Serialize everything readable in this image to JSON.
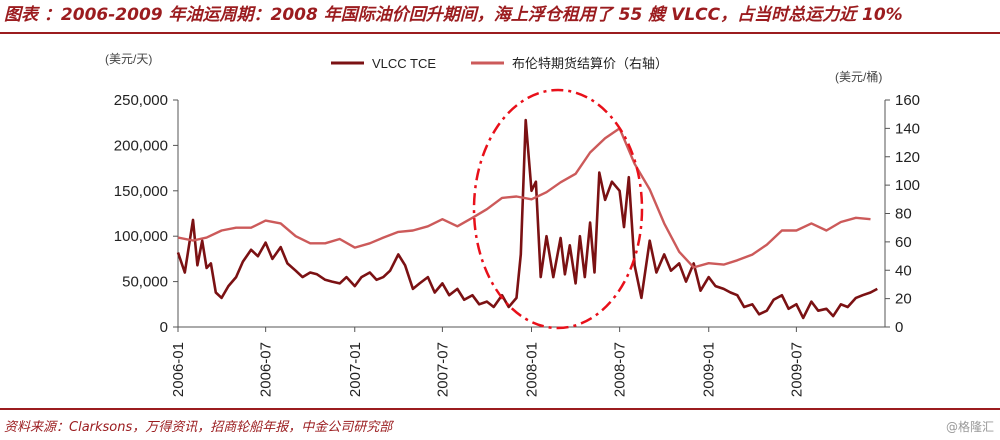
{
  "header": {
    "title": "图表 ：2006-2009 年油运周期：2008 年国际油价回升期间，海上浮仓租用了 55 艘 VLCC，占当时总运力近 10%"
  },
  "footer": {
    "source": "资料来源：Clarksons，万得资讯，招商轮船年报，中金公司研究部",
    "watermark": "@格隆汇"
  },
  "colors": {
    "accent": "#9b1c1f",
    "vlcc": "#7b1113",
    "brent": "#cc5a5a",
    "highlight": "#e8101a"
  },
  "chart_data": {
    "type": "line",
    "left_unit": "(美元/天)",
    "right_unit": "(美元/桶)",
    "ylim_left": [
      0,
      250000
    ],
    "ylim_right": [
      0,
      160
    ],
    "left_ticks": [
      "250,000",
      "200,000",
      "150,000",
      "100,000",
      "50,000",
      "0"
    ],
    "right_ticks": [
      "160",
      "140",
      "120",
      "100",
      "80",
      "60",
      "40",
      "20",
      "0"
    ],
    "x_ticks": [
      "2006-01",
      "2006-07",
      "2007-01",
      "2007-07",
      "2008-01",
      "2008-07",
      "2009-01",
      "2009-07"
    ],
    "legend": [
      {
        "name": "VLCC TCE",
        "axis": "left"
      },
      {
        "name": "布伦特期货结算价（右轴）",
        "axis": "right"
      }
    ],
    "annotation": "dash-dot ellipse highlighting 2007-10 to 2008-08",
    "series": [
      {
        "name": "VLCC TCE",
        "axis": "left",
        "x": [
          "2006-01",
          "2006-01-15",
          "2006-02",
          "2006-02-10",
          "2006-02-20",
          "2006-03",
          "2006-03-10",
          "2006-03-20",
          "2006-04",
          "2006-04-15",
          "2006-05",
          "2006-05-15",
          "2006-06",
          "2006-06-15",
          "2006-07",
          "2006-07-15",
          "2006-08",
          "2006-08-15",
          "2006-09",
          "2006-09-15",
          "2006-10",
          "2006-10-15",
          "2006-11",
          "2006-11-15",
          "2006-12",
          "2006-12-15",
          "2007-01",
          "2007-01-15",
          "2007-02",
          "2007-02-15",
          "2007-03",
          "2007-03-15",
          "2007-04",
          "2007-04-15",
          "2007-05",
          "2007-05-15",
          "2007-06",
          "2007-06-15",
          "2007-07",
          "2007-07-15",
          "2007-08",
          "2007-08-15",
          "2007-09",
          "2007-09-15",
          "2007-10",
          "2007-10-15",
          "2007-11",
          "2007-11-15",
          "2007-12",
          "2007-12-10",
          "2007-12-20",
          "2008-01",
          "2008-01-10",
          "2008-01-20",
          "2008-02",
          "2008-02-15",
          "2008-03",
          "2008-03-10",
          "2008-03-20",
          "2008-04",
          "2008-04-10",
          "2008-04-20",
          "2008-05",
          "2008-05-10",
          "2008-05-20",
          "2008-06",
          "2008-06-15",
          "2008-07",
          "2008-07-10",
          "2008-07-20",
          "2008-08",
          "2008-08-15",
          "2008-09",
          "2008-09-15",
          "2008-10",
          "2008-10-15",
          "2008-11",
          "2008-11-15",
          "2008-12",
          "2008-12-15",
          "2009-01",
          "2009-01-15",
          "2009-02",
          "2009-02-15",
          "2009-03",
          "2009-03-15",
          "2009-04",
          "2009-04-15",
          "2009-05",
          "2009-05-15",
          "2009-06",
          "2009-06-15",
          "2009-07",
          "2009-07-15",
          "2009-08",
          "2009-08-15",
          "2009-09",
          "2009-09-15",
          "2009-10",
          "2009-10-15",
          "2009-11",
          "2009-11-15",
          "2009-12",
          "2009-12-15"
        ],
        "values": [
          82000,
          60000,
          118000,
          68000,
          95000,
          65000,
          70000,
          38000,
          32000,
          45000,
          55000,
          72000,
          85000,
          78000,
          93000,
          75000,
          88000,
          70000,
          62000,
          55000,
          60000,
          58000,
          52000,
          50000,
          48000,
          55000,
          45000,
          55000,
          60000,
          52000,
          55000,
          62000,
          80000,
          68000,
          42000,
          48000,
          55000,
          38000,
          48000,
          35000,
          42000,
          30000,
          35000,
          25000,
          28000,
          22000,
          35000,
          22000,
          32000,
          80000,
          228000,
          150000,
          160000,
          55000,
          100000,
          55000,
          98000,
          58000,
          90000,
          48000,
          100000,
          55000,
          115000,
          60000,
          170000,
          140000,
          160000,
          150000,
          110000,
          165000,
          68000,
          32000,
          95000,
          60000,
          80000,
          62000,
          70000,
          50000,
          70000,
          40000,
          55000,
          45000,
          42000,
          38000,
          35000,
          22000,
          25000,
          14000,
          18000,
          30000,
          35000,
          20000,
          25000,
          10000,
          28000,
          18000,
          20000,
          12000,
          25000,
          22000,
          32000,
          35000,
          38000,
          42000
        ]
      },
      {
        "name": "布伦特期货结算价（右轴）",
        "axis": "right",
        "x": [
          "2006-01",
          "2006-02",
          "2006-03",
          "2006-04",
          "2006-05",
          "2006-06",
          "2006-07",
          "2006-08",
          "2006-09",
          "2006-10",
          "2006-11",
          "2006-12",
          "2007-01",
          "2007-02",
          "2007-03",
          "2007-04",
          "2007-05",
          "2007-06",
          "2007-07",
          "2007-08",
          "2007-09",
          "2007-10",
          "2007-11",
          "2007-12",
          "2008-01",
          "2008-02",
          "2008-03",
          "2008-04",
          "2008-05",
          "2008-06",
          "2008-07",
          "2008-08",
          "2008-09",
          "2008-10",
          "2008-11",
          "2008-12",
          "2009-01",
          "2009-02",
          "2009-03",
          "2009-04",
          "2009-05",
          "2009-06",
          "2009-07",
          "2009-08",
          "2009-09",
          "2009-10",
          "2009-11",
          "2009-12"
        ],
        "values": [
          63,
          61,
          63,
          68,
          70,
          70,
          75,
          73,
          64,
          59,
          59,
          62,
          56,
          59,
          63,
          67,
          68,
          71,
          76,
          71,
          77,
          83,
          91,
          92,
          90,
          95,
          102,
          108,
          123,
          133,
          140,
          115,
          97,
          73,
          53,
          42,
          45,
          44,
          47,
          51,
          58,
          68,
          68,
          73,
          68,
          74,
          77,
          76
        ]
      }
    ]
  }
}
